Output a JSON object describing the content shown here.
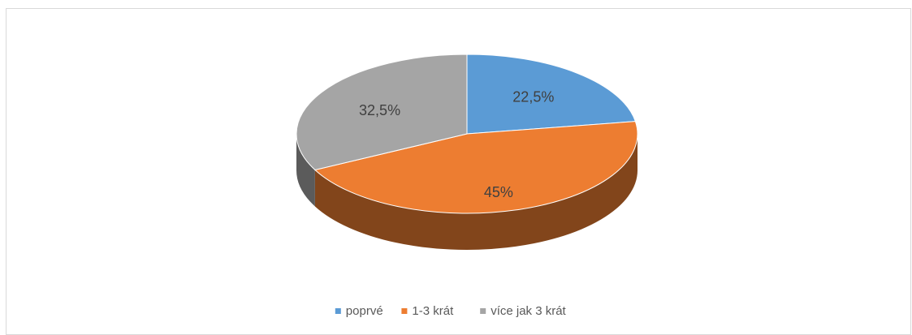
{
  "chart_data": {
    "type": "pie",
    "three_d": true,
    "categories": [
      "poprvé",
      "1-3 krát",
      "více jak 3 krát"
    ],
    "values": [
      22.5,
      45,
      32.5
    ],
    "value_labels": [
      "22,5%",
      "45%",
      "32,5%"
    ],
    "colors": [
      "#5b9bd5",
      "#ed7d31",
      "#a5a5a5"
    ],
    "legend": "bottom"
  }
}
